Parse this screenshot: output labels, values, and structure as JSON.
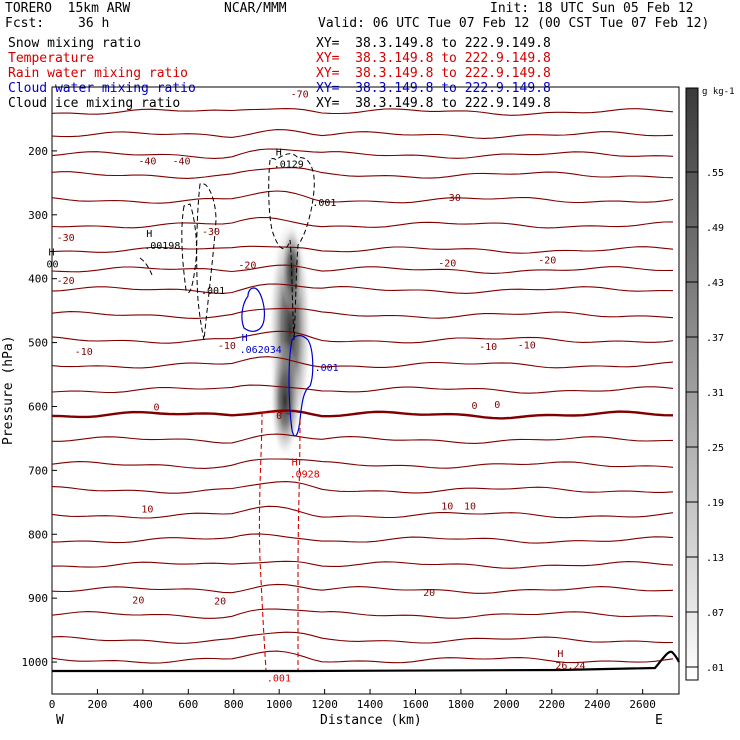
{
  "header": {
    "model": "TORERO  15km ARW",
    "center": "NCAR/MMM",
    "init": "Init: 18 UTC Sun 05 Feb 12",
    "fcst_label": "Fcst:",
    "fcst_value": "36 h",
    "valid": "Valid: 06 UTC Tue 07 Feb 12 (00 CST Tue 07 Feb 12)"
  },
  "fields": [
    {
      "name": "Snow mixing ratio",
      "xy": "XY=  38.3.149.8 to 222.9.149.8",
      "color": "#000000"
    },
    {
      "name": "Temperature",
      "xy": "XY=  38.3.149.8 to 222.9.149.8",
      "color": "#d40000"
    },
    {
      "name": "Rain water mixing ratio",
      "xy": "XY=  38.3.149.8 to 222.9.149.8",
      "color": "#d40000"
    },
    {
      "name": "Cloud water mixing ratio",
      "xy": "XY=  38.3.149.8 to 222.9.149.8",
      "color": "#0000cc"
    },
    {
      "name": "Cloud ice mixing ratio",
      "xy": "XY=  38.3.149.8 to 222.9.149.8",
      "color": "#000000"
    }
  ],
  "chart_data": {
    "type": "contour",
    "xlabel": "Distance (km)",
    "ylabel": "Pressure (hPa)",
    "xlim": [
      0,
      2760
    ],
    "ylim": [
      1050,
      100
    ],
    "x_ticks": [
      0,
      200,
      400,
      600,
      800,
      1000,
      1200,
      1400,
      1600,
      1800,
      2000,
      2200,
      2400,
      2600
    ],
    "y_ticks": [
      200,
      300,
      400,
      500,
      600,
      700,
      800,
      900,
      1000
    ],
    "x_end_labels": {
      "left": "W",
      "right": "E"
    },
    "colorbar": {
      "unit": "g kg-1",
      "levels": [
        ".01",
        ".07",
        ".13",
        ".19",
        ".25",
        ".31",
        ".37",
        ".43",
        ".49",
        ".55"
      ]
    },
    "temperature_labels": [
      {
        "text": "-70",
        "x": 1090,
        "p": 110
      },
      {
        "text": "-40",
        "x": 420,
        "p": 215
      },
      {
        "text": "-40",
        "x": 570,
        "p": 215
      },
      {
        "text": "-30",
        "x": 60,
        "p": 335
      },
      {
        "text": "-30",
        "x": 700,
        "p": 325
      },
      {
        "text": "-30",
        "x": 1760,
        "p": 272
      },
      {
        "text": "-20",
        "x": 60,
        "p": 402
      },
      {
        "text": "-20",
        "x": 860,
        "p": 378
      },
      {
        "text": "-20",
        "x": 1740,
        "p": 375
      },
      {
        "text": "-20",
        "x": 2180,
        "p": 370
      },
      {
        "text": "-10",
        "x": 140,
        "p": 513
      },
      {
        "text": "-10",
        "x": 770,
        "p": 504
      },
      {
        "text": "-10",
        "x": 1920,
        "p": 505
      },
      {
        "text": "-10",
        "x": 2090,
        "p": 503
      },
      {
        "text": "0",
        "x": 460,
        "p": 600
      },
      {
        "text": "0",
        "x": 1000,
        "p": 613
      },
      {
        "text": "0",
        "x": 1860,
        "p": 598
      },
      {
        "text": "0",
        "x": 1960,
        "p": 596
      },
      {
        "text": "10",
        "x": 420,
        "p": 760
      },
      {
        "text": "10",
        "x": 1740,
        "p": 755
      },
      {
        "text": "10",
        "x": 1840,
        "p": 755
      },
      {
        "text": "20",
        "x": 380,
        "p": 902
      },
      {
        "text": "20",
        "x": 740,
        "p": 904
      },
      {
        "text": "20",
        "x": 1660,
        "p": 890
      }
    ],
    "extrema_labels": [
      {
        "mark": "H",
        "text": ".0129",
        "x": 1020,
        "p": 220,
        "color": "#000000"
      },
      {
        "mark": "",
        "text": ".001",
        "x": 1190,
        "p": 280,
        "color": "#000000"
      },
      {
        "mark": "H",
        "text": ".00198",
        "x": 450,
        "p": 347,
        "color": "#000000"
      },
      {
        "mark": "H",
        "text": "00",
        "x": 20,
        "p": 376,
        "color": "#000000"
      },
      {
        "mark": "",
        "text": ".001",
        "x": 700,
        "p": 418,
        "color": "#000000"
      },
      {
        "mark": "H",
        "text": ".062034",
        "x": 870,
        "p": 510,
        "color": "#0000cc"
      },
      {
        "mark": "",
        "text": ".001",
        "x": 1200,
        "p": 538,
        "color": "#0000cc"
      },
      {
        "mark": "H",
        "text": ".0928",
        "x": 1090,
        "p": 705,
        "color": "#d40000"
      },
      {
        "mark": "",
        "text": ".001",
        "x": 990,
        "p": 1024,
        "color": "#d40000"
      },
      {
        "mark": "H",
        "text": "26.24",
        "x": 2260,
        "p": 1005,
        "color": "#800000"
      }
    ]
  }
}
